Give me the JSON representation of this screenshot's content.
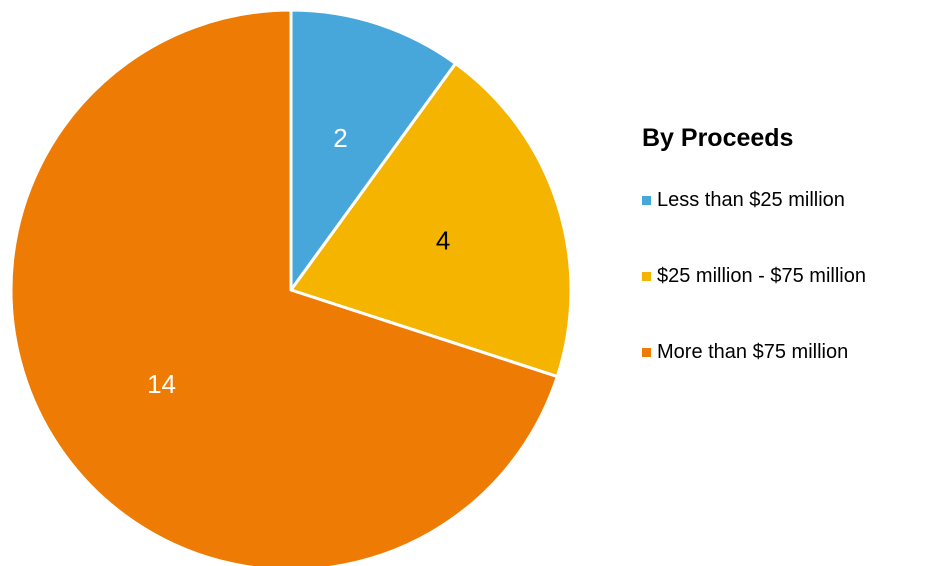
{
  "chart_data": {
    "type": "pie",
    "title": "",
    "legend_title": "By Proceeds",
    "legend_position": "right",
    "slices": [
      {
        "label": "Less than $25 million",
        "value": 2,
        "color": "#47A7DB",
        "label_color": "#ffffff"
      },
      {
        "label": "$25 million - $75 million",
        "value": 4,
        "color": "#F4B400",
        "label_color": "#000000"
      },
      {
        "label": "More than $75 million",
        "value": 14,
        "color": "#EE7B03",
        "label_color": "#ffffff"
      }
    ],
    "start_angle": "12 o'clock",
    "direction": "clockwise",
    "slice_border_color": "#ffffff"
  }
}
